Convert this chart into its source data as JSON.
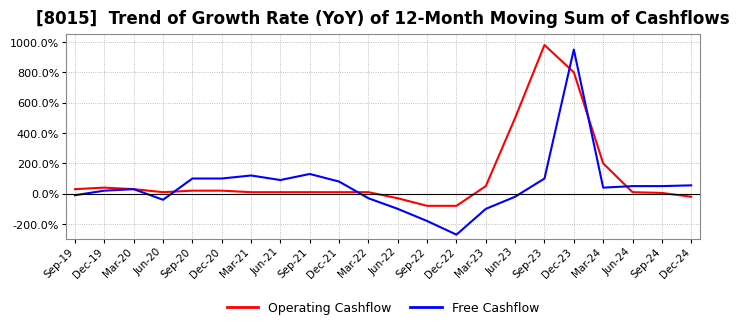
{
  "title": "[8015]  Trend of Growth Rate (YoY) of 12-Month Moving Sum of Cashflows",
  "title_fontsize": 12,
  "ylim": [
    -300,
    1050
  ],
  "yticks": [
    -200,
    0,
    200,
    400,
    600,
    800,
    1000
  ],
  "ytick_labels": [
    "-200.0%",
    "0.0%",
    "200.0%",
    "400.0%",
    "600.0%",
    "800.0%",
    "1000.0%"
  ],
  "background_color": "#ffffff",
  "grid_color": "#aaaaaa",
  "legend_labels": [
    "Operating Cashflow",
    "Free Cashflow"
  ],
  "legend_colors": [
    "red",
    "blue"
  ],
  "x_labels": [
    "Sep-19",
    "Dec-19",
    "Mar-20",
    "Jun-20",
    "Sep-20",
    "Dec-20",
    "Mar-21",
    "Jun-21",
    "Sep-21",
    "Dec-21",
    "Mar-22",
    "Jun-22",
    "Sep-22",
    "Dec-22",
    "Mar-23",
    "Jun-23",
    "Sep-23",
    "Dec-23",
    "Mar-24",
    "Jun-24",
    "Sep-24",
    "Dec-24"
  ],
  "operating_cashflow": [
    30,
    40,
    30,
    10,
    20,
    20,
    10,
    10,
    10,
    10,
    10,
    -30,
    -80,
    -80,
    50,
    500,
    980,
    800,
    200,
    10,
    5,
    -20
  ],
  "free_cashflow": [
    -10,
    20,
    30,
    -40,
    100,
    100,
    120,
    90,
    130,
    80,
    -30,
    -100,
    -180,
    -270,
    -100,
    -20,
    100,
    950,
    40,
    50,
    50,
    55
  ]
}
